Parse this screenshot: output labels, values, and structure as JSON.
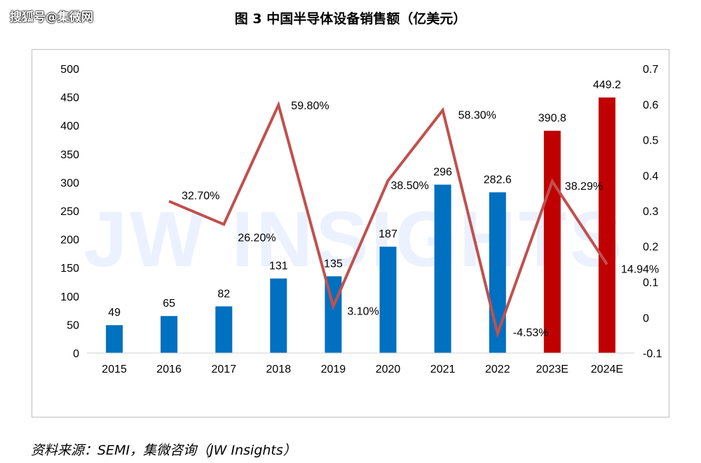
{
  "page": {
    "watermark": "搜狐号@集微网",
    "title": "图 3 中国半导体设备销售额（亿美元）",
    "source": "资料来源：SEMI，集微咨询（JW Insights）",
    "background_watermark": "JW INSIGHTS"
  },
  "chart_data": {
    "type": "bar",
    "title": "图 3 中国半导体设备销售额（亿美元）",
    "categories": [
      "2015",
      "2016",
      "2017",
      "2018",
      "2019",
      "2020",
      "2021",
      "2022",
      "2023E",
      "2024E"
    ],
    "series": [
      {
        "values": [
          49,
          65,
          82,
          131,
          135,
          187,
          296,
          282.6,
          390.8,
          449.2
        ],
        "labels": [
          "49",
          "65",
          "82",
          "131",
          "135",
          "187",
          "296",
          "282.6",
          "390.8",
          "449.2"
        ],
        "colors": [
          "#0070c0",
          "#0070c0",
          "#0070c0",
          "#0070c0",
          "#0070c0",
          "#0070c0",
          "#0070c0",
          "#0070c0",
          "#c00000",
          "#c00000"
        ],
        "axis": "left"
      },
      {
        "type": "line",
        "axis": "right",
        "color": "#c0504d",
        "values": [
          null,
          0.327,
          0.262,
          0.598,
          0.031,
          0.385,
          0.583,
          -0.0453,
          0.3829,
          0.1494
        ],
        "labels": [
          "",
          "32.70%",
          "26.20%",
          "59.80%",
          "3.10%",
          "38.50%",
          "58.30%",
          "-4.53%",
          "38.29%",
          "14.94%"
        ]
      }
    ],
    "y_left": {
      "min": 0,
      "max": 500,
      "ticks": [
        "0",
        "50",
        "100",
        "150",
        "200",
        "250",
        "300",
        "350",
        "400",
        "450",
        "500"
      ]
    },
    "y_right": {
      "min": -0.1,
      "max": 0.7,
      "ticks": [
        "-0.1",
        "0",
        "0.1",
        "0.2",
        "0.3",
        "0.4",
        "0.5",
        "0.6",
        "0.7"
      ]
    },
    "grid": false,
    "legend": "none"
  }
}
